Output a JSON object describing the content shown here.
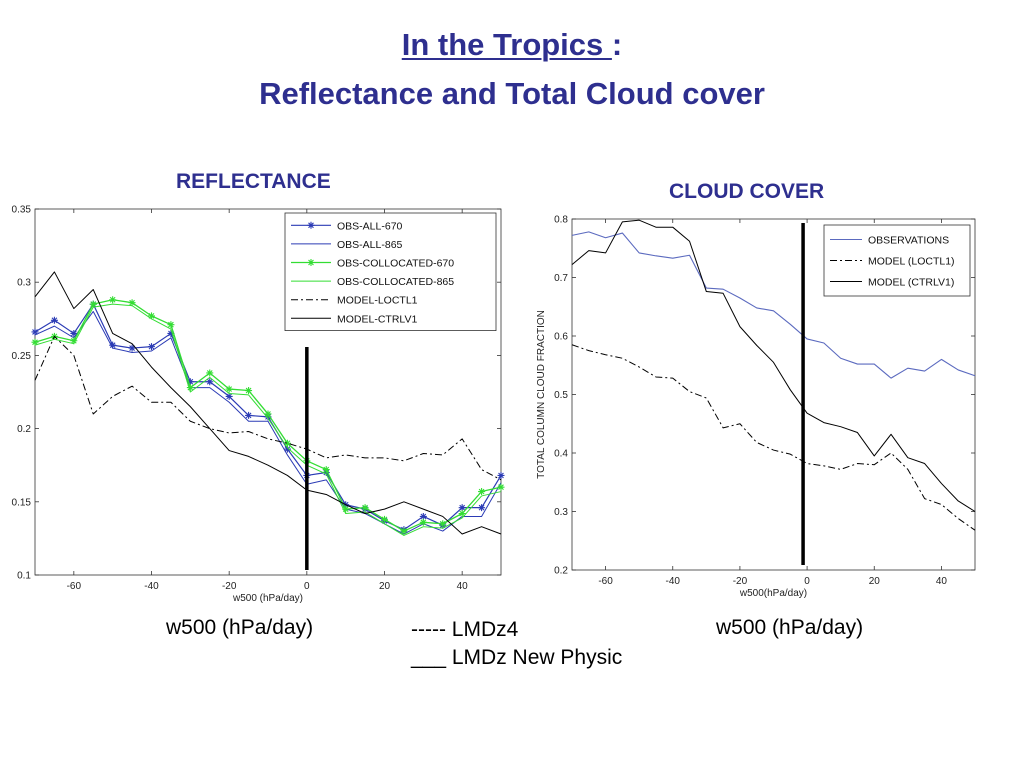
{
  "header": {
    "title_line1": "In the Tropics ",
    "title_colon": ":",
    "title_line2": "Reflectance and Total Cloud cover"
  },
  "captions": {
    "left_axis": "w500 (hPa/day)",
    "right_axis": "w500 (hPa/day)",
    "lmdz4": "----- LMDz4",
    "new_physic": "___ LMDz New Physic"
  },
  "colors": {
    "title": "#2e2f8f",
    "obs_blue": "#2b3bb5",
    "obs_green": "#33dd33",
    "model": "#000000",
    "cloud_obs": "#5b6abf"
  },
  "chart_data": [
    {
      "type": "line",
      "title": "REFLECTANCE",
      "xlabel": "w500 (hPa/day)",
      "ylabel": "",
      "xlim": [
        -70,
        50
      ],
      "ylim": [
        0.1,
        0.35
      ],
      "xticks": [
        -60,
        -40,
        -20,
        0,
        20,
        40
      ],
      "yticks": [
        0.1,
        0.15,
        0.2,
        0.25,
        0.3,
        0.35
      ],
      "ytick_labels": [
        "0.1",
        "0.15",
        "0.2",
        "0.25",
        "0.3",
        "0.35"
      ],
      "xtick_labels": [
        "-60",
        "-40",
        "-20",
        "0",
        "20",
        "40"
      ],
      "legend_position": "top-right",
      "vline_x": 0,
      "grid": false,
      "x": [
        -70,
        -65,
        -60,
        -55,
        -50,
        -45,
        -40,
        -35,
        -30,
        -25,
        -20,
        -15,
        -10,
        -5,
        0,
        5,
        10,
        15,
        20,
        25,
        30,
        35,
        40,
        45,
        50
      ],
      "series": [
        {
          "name": "OBS-ALL-670",
          "style": "blue-star",
          "values": [
            0.266,
            0.274,
            0.265,
            0.285,
            0.257,
            0.255,
            0.256,
            0.265,
            0.232,
            0.232,
            0.222,
            0.209,
            0.208,
            0.186,
            0.168,
            0.17,
            0.148,
            0.145,
            0.137,
            0.131,
            0.14,
            0.134,
            0.146,
            0.146,
            0.168
          ]
        },
        {
          "name": "OBS-ALL-865",
          "style": "blue",
          "values": [
            0.264,
            0.27,
            0.262,
            0.28,
            0.255,
            0.252,
            0.253,
            0.262,
            0.228,
            0.228,
            0.218,
            0.205,
            0.205,
            0.182,
            0.162,
            0.165,
            0.145,
            0.142,
            0.135,
            0.128,
            0.135,
            0.13,
            0.14,
            0.14,
            0.163
          ]
        },
        {
          "name": "OBS-COLLOCATED-670",
          "style": "green-star",
          "values": [
            0.259,
            0.263,
            0.26,
            0.285,
            0.288,
            0.286,
            0.277,
            0.271,
            0.228,
            0.238,
            0.227,
            0.226,
            0.21,
            0.19,
            0.178,
            0.172,
            0.145,
            0.146,
            0.138,
            0.13,
            0.136,
            0.135,
            0.142,
            0.157,
            0.16
          ]
        },
        {
          "name": "OBS-COLLOCATED-865",
          "style": "green",
          "values": [
            0.257,
            0.261,
            0.258,
            0.283,
            0.285,
            0.284,
            0.275,
            0.268,
            0.225,
            0.235,
            0.224,
            0.223,
            0.207,
            0.187,
            0.175,
            0.169,
            0.142,
            0.143,
            0.135,
            0.127,
            0.133,
            0.132,
            0.139,
            0.154,
            0.157
          ]
        },
        {
          "name": "MODEL-LOCTL1",
          "style": "dashdot",
          "values": [
            0.233,
            0.263,
            0.25,
            0.21,
            0.222,
            0.229,
            0.218,
            0.218,
            0.205,
            0.2,
            0.197,
            0.198,
            0.193,
            0.19,
            0.186,
            0.18,
            0.182,
            0.18,
            0.18,
            0.178,
            0.183,
            0.182,
            0.193,
            0.172,
            0.165
          ]
        },
        {
          "name": "MODEL-CTRLV1",
          "style": "solid",
          "values": [
            0.29,
            0.307,
            0.282,
            0.295,
            0.265,
            0.258,
            0.242,
            0.228,
            0.215,
            0.2,
            0.185,
            0.181,
            0.175,
            0.168,
            0.158,
            0.155,
            0.148,
            0.142,
            0.145,
            0.15,
            0.145,
            0.14,
            0.128,
            0.133,
            0.128
          ]
        }
      ]
    },
    {
      "type": "line",
      "title": "CLOUD COVER",
      "xlabel": "w500(hPa/day)",
      "ylabel": "TOTAL COLUMN CLOUD FRACTION",
      "xlim": [
        -70,
        50
      ],
      "ylim": [
        0.2,
        0.8
      ],
      "xticks": [
        -60,
        -40,
        -20,
        0,
        20,
        40
      ],
      "yticks": [
        0.2,
        0.3,
        0.4,
        0.5,
        0.6,
        0.7,
        0.8
      ],
      "xtick_labels": [
        "-60",
        "-40",
        "-20",
        "0",
        "20",
        "40"
      ],
      "ytick_labels": [
        "0.2",
        "0.3",
        "0.4",
        "0.5",
        "0.6",
        "0.7",
        "0.8"
      ],
      "legend_position": "top-right",
      "vline_x": 0,
      "grid": false,
      "x": [
        -70,
        -65,
        -60,
        -55,
        -50,
        -45,
        -40,
        -35,
        -30,
        -25,
        -20,
        -15,
        -10,
        -5,
        0,
        5,
        10,
        15,
        20,
        25,
        30,
        35,
        40,
        45,
        50
      ],
      "series": [
        {
          "name": "OBSERVATIONS",
          "style": "cloudblue",
          "values": [
            0.772,
            0.778,
            0.768,
            0.776,
            0.742,
            0.737,
            0.733,
            0.738,
            0.682,
            0.68,
            0.665,
            0.648,
            0.643,
            0.62,
            0.595,
            0.588,
            0.562,
            0.552,
            0.552,
            0.528,
            0.545,
            0.54,
            0.56,
            0.542,
            0.532
          ]
        },
        {
          "name": "MODEL (LOCTL1)",
          "style": "dashdot",
          "values": [
            0.585,
            0.575,
            0.568,
            0.562,
            0.547,
            0.53,
            0.528,
            0.505,
            0.494,
            0.443,
            0.45,
            0.418,
            0.405,
            0.398,
            0.382,
            0.378,
            0.372,
            0.382,
            0.38,
            0.4,
            0.372,
            0.322,
            0.312,
            0.288,
            0.268
          ]
        },
        {
          "name": "MODEL (CTRLV1)",
          "style": "solid",
          "values": [
            0.722,
            0.746,
            0.742,
            0.795,
            0.798,
            0.786,
            0.786,
            0.762,
            0.676,
            0.673,
            0.616,
            0.584,
            0.555,
            0.508,
            0.468,
            0.452,
            0.445,
            0.435,
            0.395,
            0.432,
            0.392,
            0.382,
            0.348,
            0.318,
            0.3
          ]
        }
      ]
    }
  ]
}
